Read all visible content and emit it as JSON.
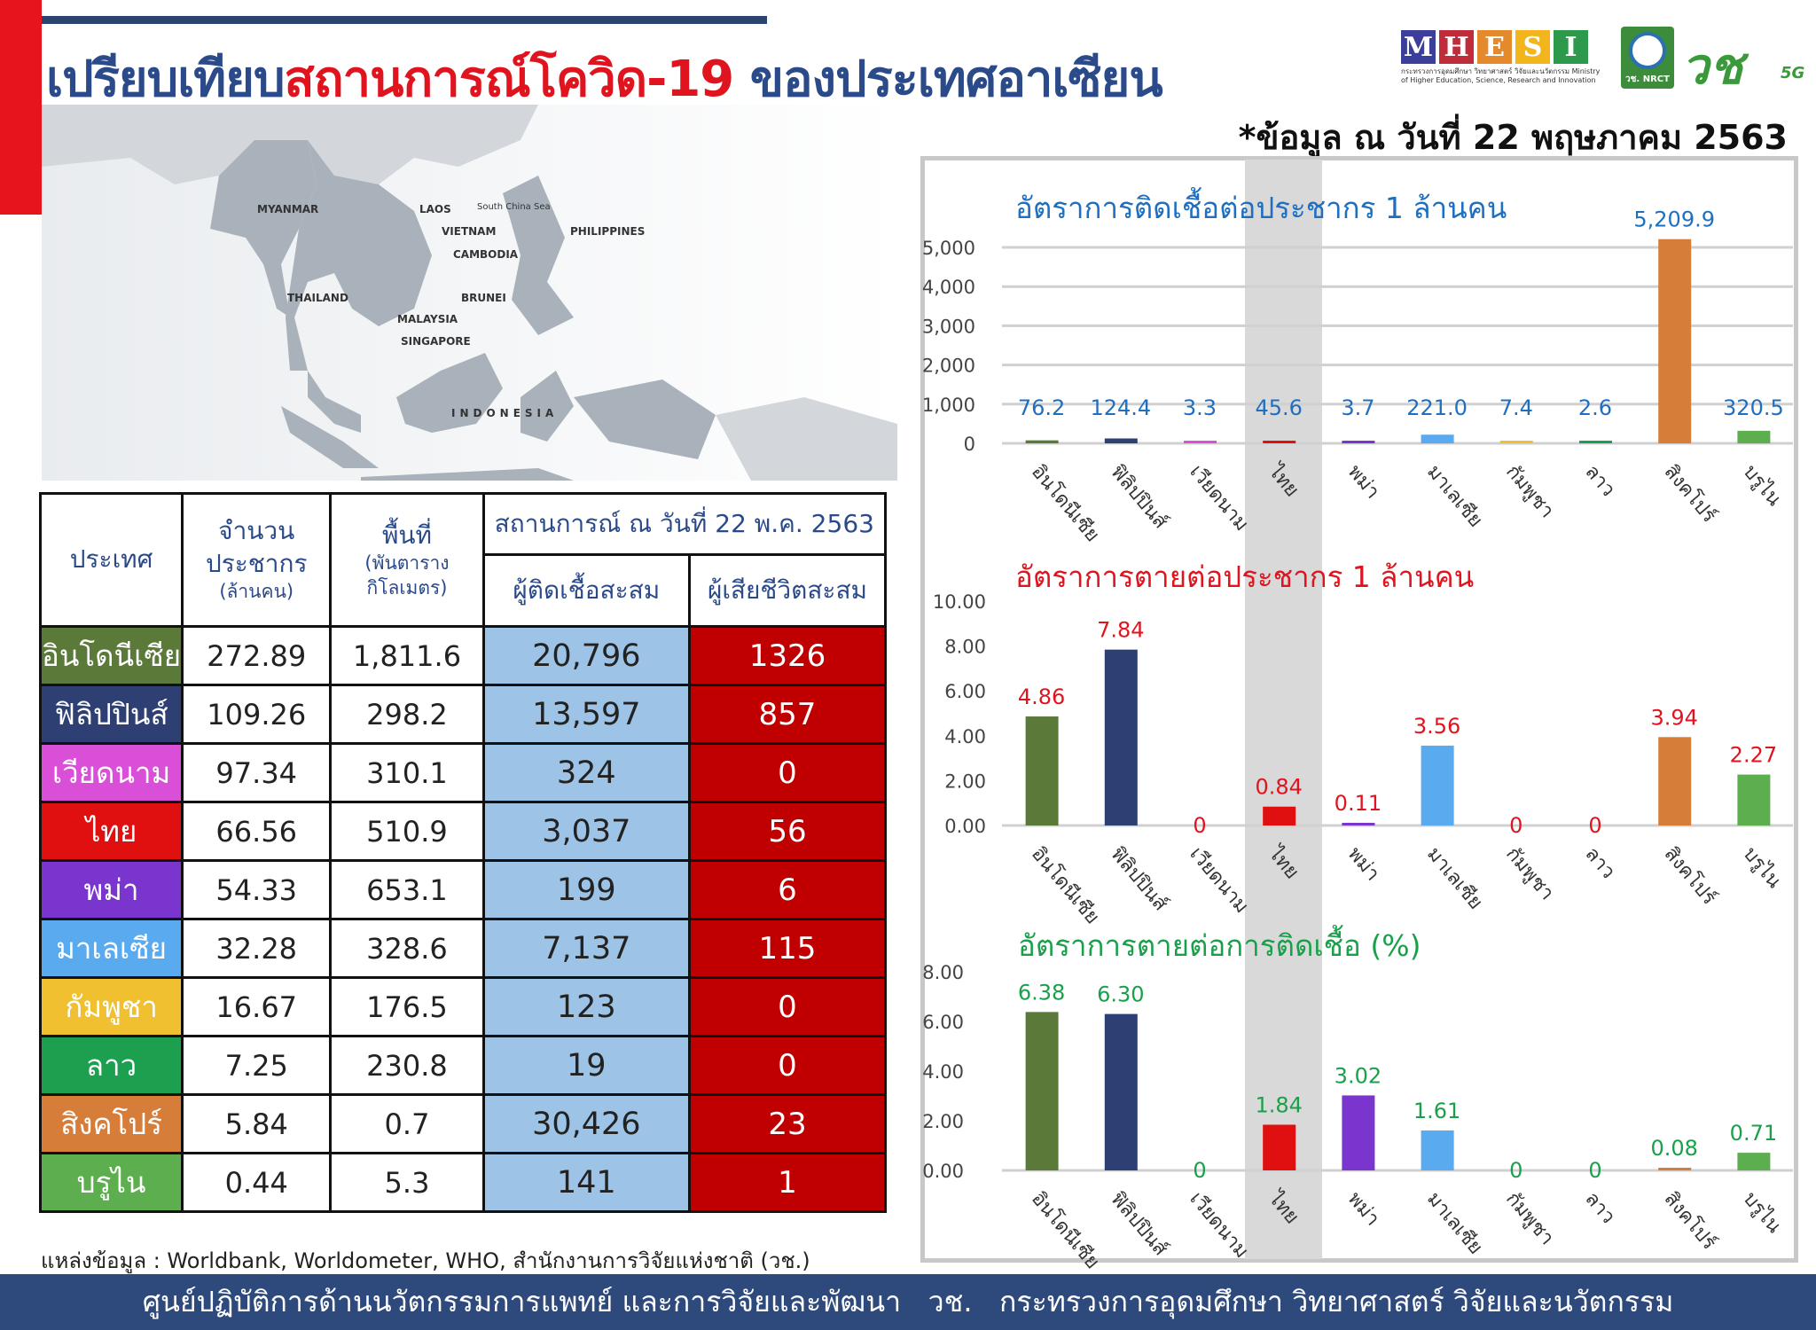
{
  "header": {
    "title_part1": "เปรียบเทียบ",
    "title_part2": "สถานการณ์โควิด-19",
    "title_part3": " ของประเทศอาเซียน",
    "date_note": "*ข้อมูล ณ วันที่ 22 พฤษภาคม 2563"
  },
  "logos": {
    "mhesi_letters": [
      "M",
      "H",
      "E",
      "S",
      "I"
    ],
    "mhesi_colors": [
      "#3b3f9a",
      "#c02c3a",
      "#e58a2c",
      "#f2b51c",
      "#2c9a4a"
    ],
    "mhesi_sub": "กระทรวงการอุดมศึกษา วิทยาศาสตร์ วิจัยและนวัตกรรม Ministry of Higher Education, Science, Research and Innovation",
    "nrct": "วช. NRCT",
    "vc": "วช",
    "vc_5g": "5G"
  },
  "map": {
    "labels": [
      "MYANMAR",
      "LAOS",
      "South China Sea",
      "VIETNAM",
      "CAMBODIA",
      "PHILIPPINES",
      "THAILAND",
      "BRUNEI",
      "MALAYSIA",
      "SINGAPORE",
      "INDONESIA"
    ]
  },
  "table": {
    "headers": {
      "country": "ประเทศ",
      "pop1": "จำนวน",
      "pop2": "ประชากร",
      "pop3": "(ล้านคน)",
      "area1": "พื้นที่",
      "area2": "(พันตาราง",
      "area3": "กิโลเมตร)",
      "situation": "สถานการณ์ ณ วันที่ 22 พ.ค. 2563",
      "cases": "ผู้ติดเชื้อสะสม",
      "deaths": "ผู้เสียชีวิตสะสม"
    },
    "rows": [
      {
        "country": "อินโดนีเซีย",
        "pop": "272.89",
        "area": "1,811.6",
        "cases": "20,796",
        "deaths": "1326",
        "color": "#5b7a3a"
      },
      {
        "country": "ฟิลิปปินส์",
        "pop": "109.26",
        "area": "298.2",
        "cases": "13,597",
        "deaths": "857",
        "color": "#2e3f73"
      },
      {
        "country": "เวียดนาม",
        "pop": "97.34",
        "area": "310.1",
        "cases": "324",
        "deaths": "0",
        "color": "#d94fd8"
      },
      {
        "country": "ไทย",
        "pop": "66.56",
        "area": "510.9",
        "cases": "3,037",
        "deaths": "56",
        "color": "#e01010"
      },
      {
        "country": "พม่า",
        "pop": "54.33",
        "area": "653.1",
        "cases": "199",
        "deaths": "6",
        "color": "#7b35cf"
      },
      {
        "country": "มาเลเซีย",
        "pop": "32.28",
        "area": "328.6",
        "cases": "7,137",
        "deaths": "115",
        "color": "#5aaaf0"
      },
      {
        "country": "กัมพูชา",
        "pop": "16.67",
        "area": "176.5",
        "cases": "123",
        "deaths": "0",
        "color": "#f0c030"
      },
      {
        "country": "ลาว",
        "pop": "7.25",
        "area": "230.8",
        "cases": "19",
        "deaths": "0",
        "color": "#1ca050"
      },
      {
        "country": "สิงคโปร์",
        "pop": "5.84",
        "area": "0.7",
        "cases": "30,426",
        "deaths": "23",
        "color": "#d67d3a"
      },
      {
        "country": "บรูไน",
        "pop": "0.44",
        "area": "5.3",
        "cases": "141",
        "deaths": "1",
        "color": "#5cae4e"
      }
    ]
  },
  "source": "แหล่งข้อมูล : Worldbank, Worldometer, WHO, สำนักงานการวิจัยแห่งชาติ (วช.)",
  "footer": "ศูนย์ปฏิบัติการด้านนวัตกรรมการแพทย์ และการวิจัยและพัฒนา   วช.   กระทรวงการอุดมศึกษา วิทยาศาสตร์ วิจัยและนวัตกรรม",
  "highlight_category": "ไทย",
  "chart_data": [
    {
      "type": "bar",
      "title": "อัตราการติดเชื้อต่อประชากร 1 ล้านคน",
      "title_color": "#1f6fc0",
      "label_color": "#1f6fc0",
      "categories": [
        "อินโดนีเซีย",
        "ฟิลิปปินส์",
        "เวียดนาม",
        "ไทย",
        "พม่า",
        "มาเลเซีย",
        "กัมพูชา",
        "ลาว",
        "สิงคโปร์",
        "บรูไน"
      ],
      "values": [
        76.2,
        124.4,
        3.3,
        45.6,
        3.7,
        221.0,
        7.4,
        2.6,
        5209.9,
        320.5
      ],
      "labels": [
        "76.2",
        "124.4",
        "3.3",
        "45.6",
        "3.7",
        "221.0",
        "7.4",
        "2.6",
        "5,209.9",
        "320.5"
      ],
      "ylim": [
        0,
        5000
      ],
      "yticks": [
        "0",
        "1,000",
        "2,000",
        "3,000",
        "4,000",
        "5,000"
      ],
      "grid": true
    },
    {
      "type": "bar",
      "title": "อัตราการตายต่อประชากร 1 ล้านคน",
      "title_color": "#e0141e",
      "label_color": "#e0141e",
      "categories": [
        "อินโดนีเซีย",
        "ฟิลิปปินส์",
        "เวียดนาม",
        "ไทย",
        "พม่า",
        "มาเลเซีย",
        "กัมพูชา",
        "ลาว",
        "สิงคโปร์",
        "บรูไน"
      ],
      "values": [
        4.86,
        7.84,
        0,
        0.84,
        0.11,
        3.56,
        0,
        0,
        3.94,
        2.27
      ],
      "labels": [
        "4.86",
        "7.84",
        "0",
        "0.84",
        "0.11",
        "3.56",
        "0",
        "0",
        "3.94",
        "2.27"
      ],
      "ylim": [
        0,
        10
      ],
      "yticks": [
        "0.00",
        "2.00",
        "4.00",
        "6.00",
        "8.00",
        "10.00"
      ],
      "grid": false
    },
    {
      "type": "bar",
      "title": "อัตราการตายต่อการติดเชื้อ (%)",
      "title_color": "#1aa04a",
      "label_color": "#1aa04a",
      "categories": [
        "อินโดนีเซีย",
        "ฟิลิปปินส์",
        "เวียดนาม",
        "ไทย",
        "พม่า",
        "มาเลเซีย",
        "กัมพูชา",
        "ลาว",
        "สิงคโปร์",
        "บรูไน"
      ],
      "values": [
        6.38,
        6.3,
        0,
        1.84,
        3.02,
        1.61,
        0,
        0,
        0.08,
        0.71
      ],
      "labels": [
        "6.38",
        "6.30",
        "0",
        "1.84",
        "3.02",
        "1.61",
        "0",
        "0",
        "0.08",
        "0.71"
      ],
      "ylim": [
        0,
        8
      ],
      "yticks": [
        "0.00",
        "2.00",
        "4.00",
        "6.00",
        "8.00"
      ],
      "grid": false
    }
  ],
  "bar_colors": [
    "#5b7a3a",
    "#2e3f73",
    "#d94fd8",
    "#e01010",
    "#7b35cf",
    "#5aaaf0",
    "#f0c030",
    "#1ca050",
    "#d67d3a",
    "#5cae4e"
  ]
}
